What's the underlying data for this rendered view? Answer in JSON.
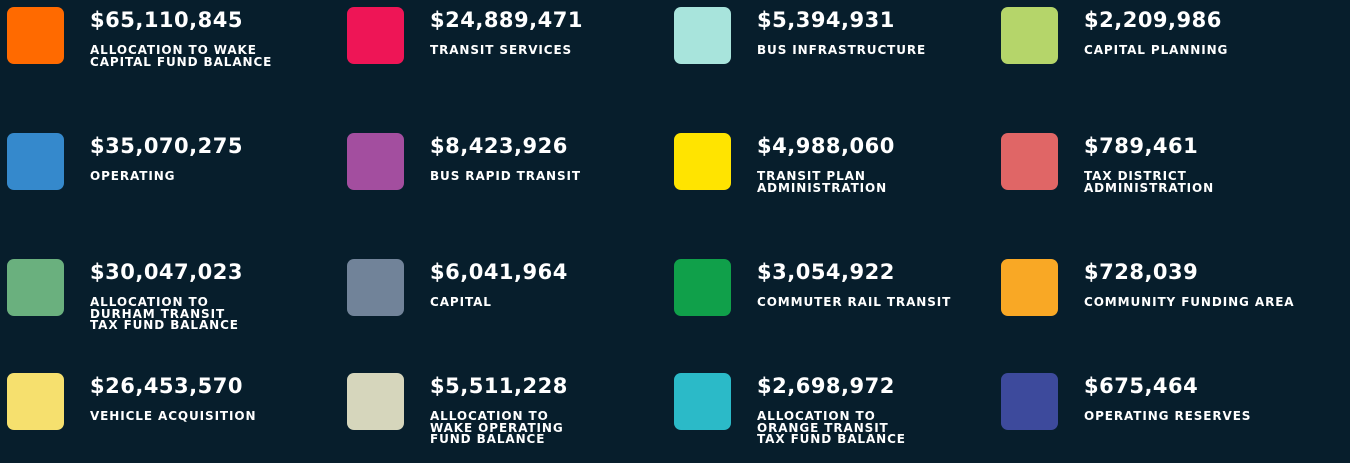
{
  "items": [
    {
      "color": "#ff6a00",
      "amount": "$65,110,845",
      "label_lines": [
        "ALLOCATION TO WAKE",
        "CAPITAL FUND BALANCE"
      ]
    },
    {
      "color": "#ee1556",
      "amount": "$24,889,471",
      "label_lines": [
        "TRANSIT SERVICES"
      ]
    },
    {
      "color": "#a8e4dc",
      "amount": "$5,394,931",
      "label_lines": [
        "BUS INFRASTRUCTURE"
      ]
    },
    {
      "color": "#b5d56a",
      "amount": "$2,209,986",
      "label_lines": [
        "CAPITAL PLANNING"
      ]
    },
    {
      "color": "#3589cc",
      "amount": "$35,070,275",
      "label_lines": [
        "OPERATING"
      ]
    },
    {
      "color": "#a34e9f",
      "amount": "$8,423,926",
      "label_lines": [
        "BUS RAPID TRANSIT"
      ]
    },
    {
      "color": "#ffe400",
      "amount": "$4,988,060",
      "label_lines": [
        "TRANSIT PLAN",
        "ADMINISTRATION"
      ]
    },
    {
      "color": "#e06666",
      "amount": "$789,461",
      "label_lines": [
        "TAX DISTRICT",
        "ADMINISTRATION"
      ]
    },
    {
      "color": "#6ab07e",
      "amount": "$30,047,023",
      "label_lines": [
        "ALLOCATION TO",
        "DURHAM TRANSIT",
        "TAX FUND BALANCE"
      ]
    },
    {
      "color": "#718399",
      "amount": "$6,041,964",
      "label_lines": [
        "CAPITAL"
      ]
    },
    {
      "color": "#10a04a",
      "amount": "$3,054,922",
      "label_lines": [
        "COMMUTER RAIL TRANSIT"
      ]
    },
    {
      "color": "#f9a825",
      "amount": "$728,039",
      "label_lines": [
        "COMMUNITY FUNDING AREA"
      ]
    },
    {
      "color": "#f6e06e",
      "amount": "$26,453,570",
      "label_lines": [
        "VEHICLE ACQUISITION"
      ]
    },
    {
      "color": "#d6d6bc",
      "amount": "$5,511,228",
      "label_lines": [
        "ALLOCATION TO",
        "WAKE OPERATING",
        "FUND BALANCE"
      ]
    },
    {
      "color": "#2bbac8",
      "amount": "$2,698,972",
      "label_lines": [
        "ALLOCATION TO",
        "ORANGE TRANSIT",
        "TAX FUND BALANCE"
      ]
    },
    {
      "color": "#3d4a9c",
      "amount": "$675,464",
      "label_lines": [
        "OPERATING RESERVES"
      ]
    }
  ]
}
